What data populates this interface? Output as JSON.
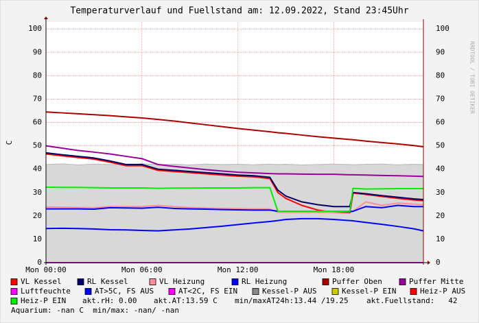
{
  "chart_data": {
    "type": "line",
    "title": "Temperaturverlauf und Fuellstand am: 12.09.2022, Stand 23:45Uhr",
    "y_label": "C",
    "watermark": "RRDTOOL / TOBI OETIKER",
    "x": [
      0,
      1,
      2,
      3,
      4,
      5,
      6,
      7,
      8,
      9,
      10,
      11,
      12,
      13,
      14,
      14.5,
      15,
      16,
      17,
      18,
      19,
      19.2,
      20,
      21,
      22,
      23,
      23.6
    ],
    "xlim": [
      0,
      23.6
    ],
    "xticks": [
      {
        "value": 0,
        "label": "Mon 00:00"
      },
      {
        "value": 6,
        "label": "Mon 06:00"
      },
      {
        "value": 12,
        "label": "Mon 12:00"
      },
      {
        "value": 18,
        "label": "Mon 18:00"
      }
    ],
    "ylim": [
      0,
      103
    ],
    "yticks": [
      0,
      10,
      20,
      30,
      40,
      50,
      60,
      70,
      80,
      90,
      100
    ],
    "grid": true,
    "series": [
      {
        "name": "VL Kessel",
        "color": "#ff0000",
        "values": [
          46.5,
          45.7,
          45,
          44.3,
          43,
          41.5,
          41.5,
          39.5,
          39,
          38.5,
          38,
          37.5,
          37,
          36.7,
          36,
          30,
          27.5,
          24.5,
          22.5,
          21.5,
          21.3,
          29.8,
          29.2,
          28.3,
          27.5,
          26.8,
          26.5
        ]
      },
      {
        "name": "RL Kessel",
        "color": "#000066",
        "values": [
          47,
          46.2,
          45.5,
          44.8,
          43.5,
          42,
          42,
          40,
          39.5,
          39,
          38.5,
          38,
          37.5,
          37.2,
          36.5,
          31,
          28.5,
          26,
          24.8,
          24,
          24,
          30,
          29.5,
          28.7,
          28,
          27.3,
          27
        ]
      },
      {
        "name": "VL Heizung",
        "color": "#ff8c9a",
        "values": [
          23.8,
          23.7,
          23.6,
          23.5,
          24,
          24,
          24,
          24.5,
          24,
          23.6,
          23.4,
          23.2,
          23.1,
          23,
          23,
          21.5,
          21.5,
          21.5,
          21.5,
          21.5,
          21.5,
          22,
          26,
          24.5,
          25.5,
          25,
          24.8
        ]
      },
      {
        "name": "RL Heizung",
        "color": "#0000ff",
        "values": [
          23,
          23,
          23,
          22.9,
          23.5,
          23.4,
          23.3,
          23.7,
          23.2,
          23,
          22.9,
          22.7,
          22.6,
          22.5,
          22.5,
          22,
          22,
          22,
          22,
          22,
          21.8,
          22,
          24,
          23.5,
          24.5,
          24,
          24
        ]
      },
      {
        "name": "Puffer Oben",
        "color": "#aa0000",
        "values": [
          64.5,
          64.1,
          63.7,
          63.3,
          62.9,
          62.4,
          61.9,
          61.3,
          60.6,
          59.8,
          59,
          58.2,
          57.4,
          56.7,
          56,
          55.6,
          55.3,
          54.6,
          53.9,
          53.3,
          52.7,
          52.6,
          52,
          51.4,
          50.8,
          50.1,
          49.6
        ]
      },
      {
        "name": "Puffer Mitte",
        "color": "#990099",
        "values": [
          50,
          49,
          48,
          47.3,
          46.5,
          45.5,
          44.5,
          42,
          41.2,
          40.5,
          39.8,
          39.2,
          38.7,
          38.4,
          38.1,
          38,
          38,
          37.9,
          37.8,
          37.8,
          37.6,
          37.6,
          37.5,
          37.3,
          37.2,
          37,
          36.9
        ]
      },
      {
        "name": "Luftfeuchte",
        "color": "#ff00ff",
        "values": [
          0,
          0,
          0,
          0,
          0,
          0,
          0,
          0,
          0,
          0,
          0,
          0,
          0,
          0,
          0,
          0,
          0,
          0,
          0,
          0,
          0,
          0,
          0,
          0,
          0,
          0,
          0
        ]
      },
      {
        "name": "AT>5C, FS AUS",
        "color": "#0000ff",
        "values": [
          14.6,
          14.7,
          14.6,
          14.4,
          14.1,
          14,
          13.8,
          13.6,
          14,
          14.4,
          15,
          15.6,
          16.3,
          17,
          17.6,
          18,
          18.5,
          18.8,
          18.8,
          18.5,
          18,
          17.9,
          17.2,
          16.4,
          15.5,
          14.5,
          13.6
        ]
      },
      {
        "name": "AT<2C, FS EIN",
        "color": "#ff00ff"
      },
      {
        "name": "Kessel-P AUS",
        "color": "#888888",
        "area": true,
        "values": [
          42,
          42.3,
          41.8,
          42.2,
          42,
          41.9,
          42.3,
          42,
          42.1,
          41.8,
          42.2,
          42,
          42.1,
          41.9,
          42.2,
          42,
          42.1,
          41.8,
          42,
          42.2,
          42,
          41.9,
          42.1,
          42.2,
          41.9,
          42.1,
          42
        ]
      },
      {
        "name": "Kessel-P EIN",
        "color": "#cccc00"
      },
      {
        "name": "Heiz-P AUS",
        "color": "#ff0000"
      },
      {
        "name": "Heiz-P EIN",
        "color": "#00ee00",
        "values": [
          32.3,
          32.2,
          32.2,
          32.1,
          32,
          32,
          32,
          31.8,
          31.9,
          31.9,
          32,
          32,
          32,
          32.1,
          32.1,
          22,
          22,
          22,
          22,
          22,
          22,
          31.8,
          31.5,
          31.6,
          31.7,
          31.7,
          31.7
        ]
      }
    ],
    "notes": [
      "akt.rH: 0.00",
      "akt.AT:13.59 C",
      "min/maxAT24h:13.44 /19.25",
      "akt.Fuellstand:   42",
      "Aquarium: -nan C  min/max: -nan/ -nan"
    ]
  }
}
